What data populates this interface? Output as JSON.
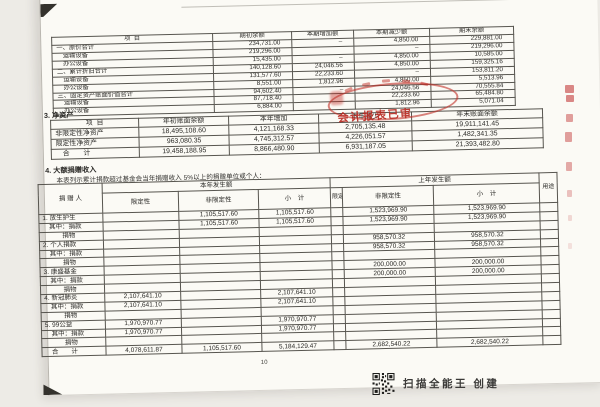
{
  "document": {
    "page_number": "10",
    "scan_footer_text": "扫描全能王 创建"
  },
  "stamp": {
    "text": "会计报表已审",
    "color": "#c0392b"
  },
  "fixed_assets_table": {
    "headers": [
      "项  目",
      "期初余额",
      "本期增加额",
      "本期减少额",
      "期末余额"
    ],
    "rows": [
      [
        "一、原价合计",
        "234,731.00",
        "–",
        "4,850.00",
        "229,881.00"
      ],
      [
        "　运输设备",
        "219,296.00",
        "",
        "–",
        "219,296.00"
      ],
      [
        "　办公设备",
        "15,435.00",
        "–",
        "4,850.00",
        "10,585.00"
      ],
      [
        "二、累计折旧合计",
        "140,128.60",
        "24,046.56",
        "4,850.00",
        "159,325.16"
      ],
      [
        "　运输设备",
        "131,577.60",
        "22,233.60",
        "–",
        "153,811.20"
      ],
      [
        "　办公设备",
        "8,551.00",
        "1,812.96",
        "4,850.00",
        "5,513.96"
      ],
      [
        "三、固定资产账面价值合计",
        "94,602.40",
        "–",
        "24,046.56",
        "70,555.84"
      ],
      [
        "　运输设备",
        "87,718.40",
        "",
        "22,233.60",
        "65,484.80"
      ],
      [
        "　办公设备",
        "6,884.00",
        "",
        "1,812.96",
        "5,071.04"
      ]
    ]
  },
  "net_assets_section": {
    "title": "3. 净资产",
    "headers": [
      "项  目",
      "年初账面余额",
      "本年增加",
      "本年减少",
      "年末账面余额"
    ],
    "rows": [
      [
        "非限定性净资产",
        "18,495,108.60",
        "4,121,168.33",
        "2,705,135.48",
        "19,911,141.45"
      ],
      [
        "限定性净资产",
        "963,080.35",
        "4,745,312.57",
        "4,226,051.57",
        "1,482,341.35"
      ],
      [
        "　合　　计",
        "19,458,188.95",
        "8,866,480.90",
        "6,931,187.05",
        "21,393,482.80"
      ]
    ]
  },
  "donations_section": {
    "title": "4. 大额捐赠收入",
    "note": "本表列示累计捐款超过基金会当年捐赠收入 5%以上的捐赠单位或个人：",
    "donor_header": "捐 赠 人",
    "current_year_header": "本年发生额",
    "prior_year_header": "上年发生额",
    "purpose_header": "用途",
    "sub_headers": {
      "restricted": "限定性",
      "unrestricted": "非限定性",
      "subtotal": "小　计"
    },
    "rows": [
      [
        "1. 放生护生",
        "",
        "1,105,517.60",
        "1,105,517.60",
        "",
        "1,523,969.90",
        "1,523,969.90",
        ""
      ],
      [
        "　其中：捐款",
        "",
        "1,105,517.60",
        "1,105,517.60",
        "",
        "1,523,969.90",
        "1,523,969.90",
        ""
      ],
      [
        "　　　捐物",
        "",
        "",
        "",
        "",
        "",
        "",
        ""
      ],
      [
        "2. 个人捐款",
        "",
        "",
        "",
        "",
        "958,570.32",
        "958,570.32",
        ""
      ],
      [
        "　其中：捐款",
        "",
        "",
        "",
        "",
        "958,570.32",
        "958,570.32",
        ""
      ],
      [
        "　　　捐物",
        "",
        "",
        "",
        "",
        "",
        "",
        ""
      ],
      [
        "3. 康盛基金",
        "",
        "",
        "",
        "",
        "200,000.00",
        "200,000.00",
        ""
      ],
      [
        "　其中：捐款",
        "",
        "",
        "",
        "",
        "200,000.00",
        "200,000.00",
        ""
      ],
      [
        "　　　捐物",
        "",
        "",
        "",
        "",
        "",
        "",
        ""
      ],
      [
        "4. 新冠肺炎",
        "2,107,641.10",
        "",
        "2,107,641.10",
        "",
        "",
        "",
        ""
      ],
      [
        "　其中：捐款",
        "2,107,641.10",
        "",
        "2,107,641.10",
        "",
        "",
        "",
        ""
      ],
      [
        "　　　捐物",
        "",
        "",
        "",
        "",
        "",
        "",
        ""
      ],
      [
        "5. 99公益",
        "1,970,970.77",
        "",
        "1,970,970.77",
        "",
        "",
        "",
        ""
      ],
      [
        "　其中：捐款",
        "1,970,970.77",
        "",
        "1,970,970.77",
        "",
        "",
        "",
        ""
      ],
      [
        "　　　捐物",
        "",
        "",
        "",
        "",
        "",
        "",
        ""
      ],
      [
        "　合　　计",
        "4,078,611.87",
        "1,105,517.60",
        "5,184,129.47",
        "",
        "2,682,540.22",
        "2,682,540.22",
        ""
      ]
    ]
  }
}
